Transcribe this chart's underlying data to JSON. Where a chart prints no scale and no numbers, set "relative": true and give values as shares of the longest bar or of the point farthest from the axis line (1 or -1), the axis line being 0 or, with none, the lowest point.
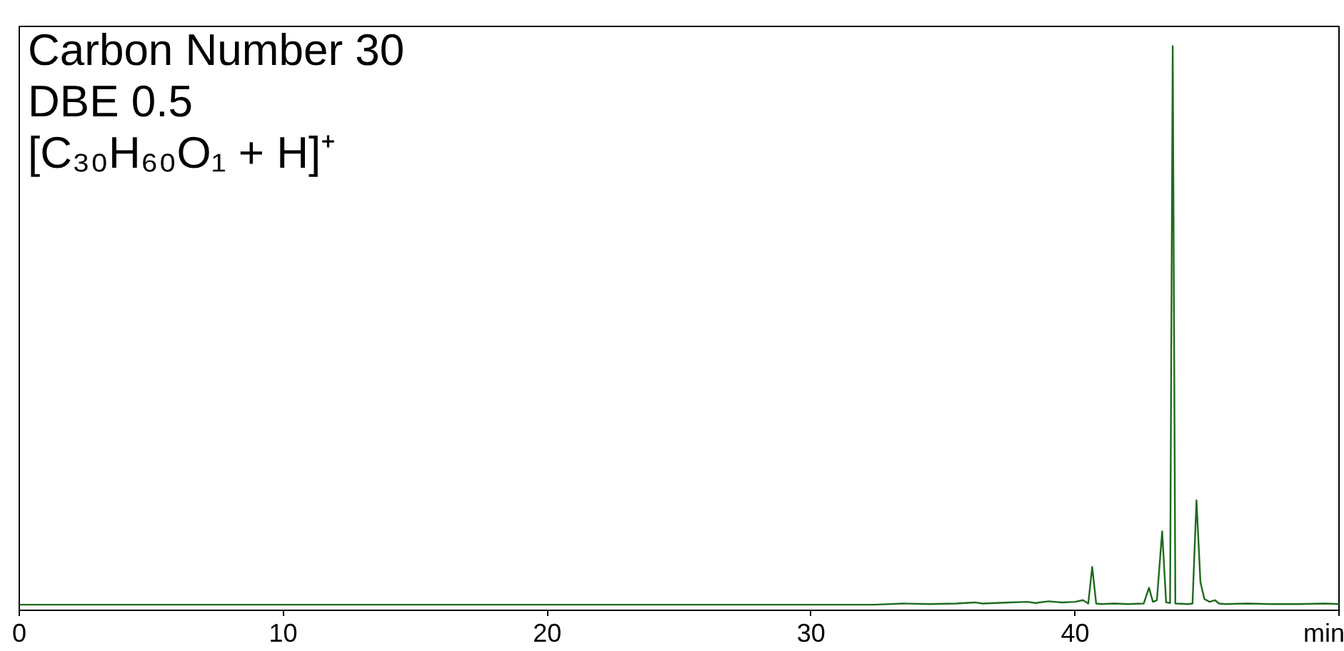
{
  "chart_data": {
    "type": "line",
    "relative": true,
    "grid": false,
    "marker": "none",
    "line_style": "solid",
    "annotations": [
      "Carbon Number 30",
      "DBE 0.5",
      "[C₃₀H₆₀O₁ + H]⁺"
    ],
    "xlim": [
      0,
      50
    ],
    "xticks": [
      0,
      10,
      20,
      30,
      40,
      {
        "value": 50,
        "label": "min"
      }
    ],
    "series": [
      {
        "color": "#1e6b1e",
        "x": [
          0,
          32.4,
          33.5,
          34.5,
          35.5,
          36.2,
          36.5,
          37.5,
          38.2,
          38.5,
          39.0,
          39.5,
          40.0,
          40.3,
          40.5,
          40.65,
          40.8,
          41.0,
          41.5,
          42.0,
          42.6,
          42.8,
          42.95,
          43.1,
          43.3,
          43.45,
          43.6,
          43.7,
          43.8,
          44.3,
          44.45,
          44.6,
          44.75,
          44.9,
          45.1,
          45.3,
          45.45,
          45.7,
          46.5,
          47.5,
          48.5,
          49.5,
          50
        ],
        "values": [
          0.01,
          0.01,
          0.012,
          0.011,
          0.012,
          0.014,
          0.012,
          0.014,
          0.015,
          0.013,
          0.016,
          0.014,
          0.015,
          0.018,
          0.012,
          0.077,
          0.012,
          0.011,
          0.012,
          0.011,
          0.012,
          0.04,
          0.015,
          0.018,
          0.14,
          0.014,
          0.013,
          1,
          0.012,
          0.011,
          0.012,
          0.195,
          0.05,
          0.02,
          0.015,
          0.018,
          0.012,
          0.011,
          0.012,
          0.011,
          0.011,
          0.012,
          0.011
        ]
      }
    ]
  }
}
